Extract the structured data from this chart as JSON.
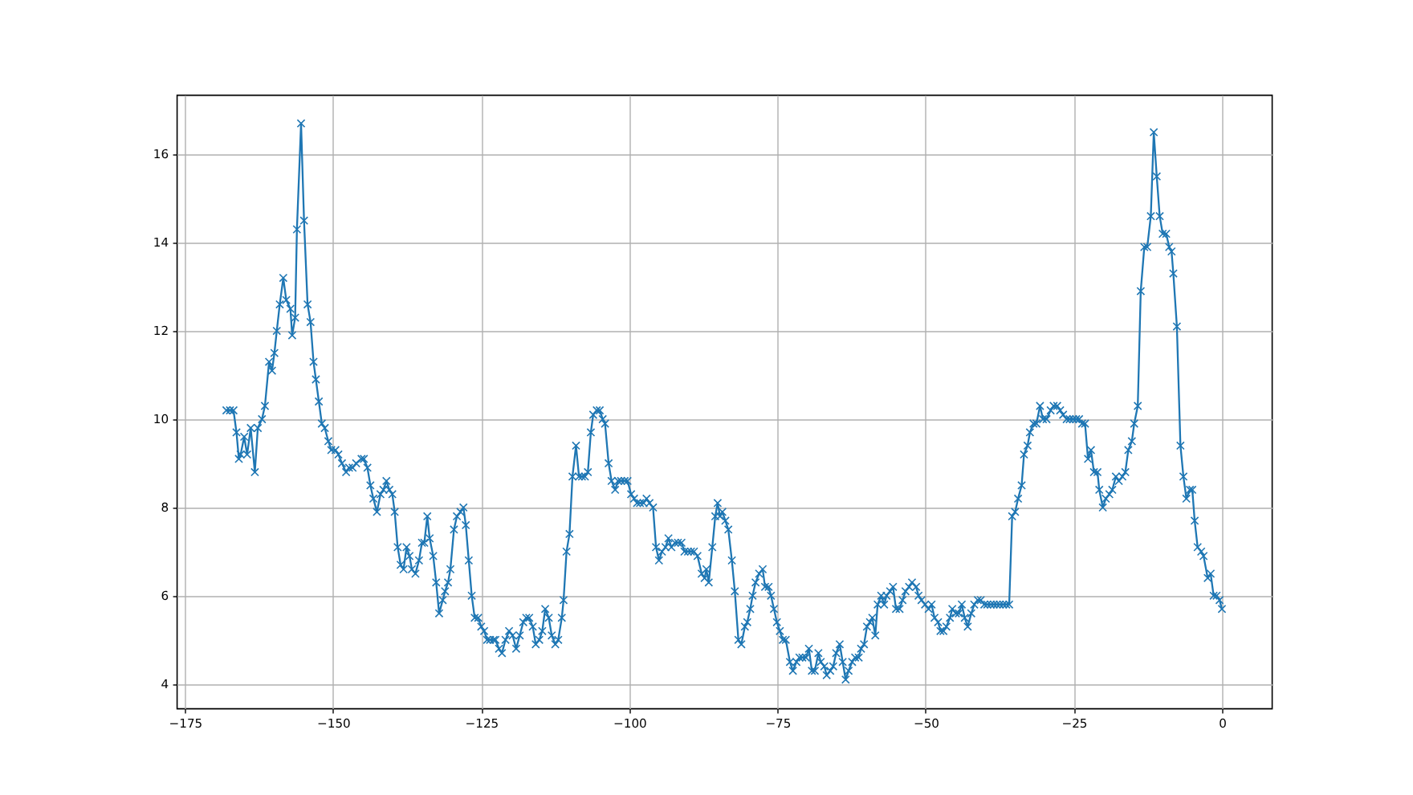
{
  "chart_data": {
    "type": "line",
    "marker": "cross",
    "line_style": "solid",
    "grid": true,
    "xlim": [
      -176.4,
      8.4
    ],
    "xticks": [
      -175,
      -150,
      -125,
      -100,
      -75,
      -50,
      -25,
      0
    ],
    "ylim": [
      3.45,
      17.35
    ],
    "yticks": [
      4,
      6,
      8,
      10,
      12,
      14,
      16
    ],
    "x": [
      -168,
      -167.4,
      -166.8,
      -166.3,
      -165.9,
      -165.6,
      -165,
      -164.5,
      -163.9,
      -163.2,
      -162.7,
      -162,
      -161.5,
      -160.8,
      -160.3,
      -159.9,
      -159.5,
      -159,
      -158.4,
      -157.9,
      -157.2,
      -156.9,
      -156.4,
      -156.1,
      -155.4,
      -154.9,
      -154.3,
      -153.8,
      -153.3,
      -152.9,
      -152.4,
      -151.9,
      -151.4,
      -150.8,
      -150.3,
      -149.6,
      -149.1,
      -148.5,
      -147.8,
      -147.3,
      -146.7,
      -146.1,
      -145.2,
      -144.8,
      -144.2,
      -143.7,
      -143.2,
      -142.6,
      -142,
      -141.5,
      -141,
      -140.5,
      -140,
      -139.6,
      -139.1,
      -138.6,
      -138.1,
      -137.6,
      -137.1,
      -136.7,
      -136.1,
      -135.5,
      -135,
      -134.6,
      -134.1,
      -133.7,
      -133.1,
      -132.6,
      -132.1,
      -131.5,
      -131.1,
      -130.6,
      -130.2,
      -129.6,
      -129.1,
      -128.5,
      -128,
      -127.6,
      -127.1,
      -126.6,
      -126.1,
      -125.5,
      -125,
      -124.5,
      -124,
      -123.5,
      -122.9,
      -122.6,
      -122,
      -121.5,
      -120.9,
      -120.3,
      -119.7,
      -119.1,
      -118.5,
      -117.9,
      -117.4,
      -116.9,
      -116.3,
      -115.8,
      -115.2,
      -114.7,
      -114.2,
      -113.6,
      -113.1,
      -112.5,
      -112,
      -111.4,
      -111.1,
      -110.6,
      -110.1,
      -109.6,
      -109,
      -108.5,
      -108,
      -107.5,
      -107,
      -106.5,
      -106.1,
      -105.5,
      -105,
      -104.5,
      -104.1,
      -103.5,
      -103,
      -102.4,
      -101.9,
      -101.4,
      -100.8,
      -100.3,
      -99.7,
      -99.2,
      -98.7,
      -98.2,
      -97.6,
      -97.1,
      -96.6,
      -96,
      -95.5,
      -95,
      -94.5,
      -93.9,
      -93.4,
      -92.9,
      -92.3,
      -91.8,
      -91.2,
      -90.7,
      -90.1,
      -89.6,
      -89.1,
      -88.5,
      -87.8,
      -87.3,
      -87,
      -86.6,
      -86,
      -85.5,
      -85.1,
      -84.7,
      -84.3,
      -83.8,
      -83.3,
      -82.7,
      -82.2,
      -81.6,
      -81.1,
      -80.5,
      -80.1,
      -79.6,
      -79.2,
      -78.7,
      -78.1,
      -77.5,
      -77.1,
      -76.5,
      -76.1,
      -75.6,
      -75.1,
      -74.6,
      -74.1,
      -73.6,
      -72.9,
      -72.4,
      -71.8,
      -71.3,
      -70.8,
      -70.2,
      -69.7,
      -69.2,
      -68.7,
      -68.1,
      -67.7,
      -67.1,
      -66.7,
      -66.1,
      -65.6,
      -65.1,
      -64.5,
      -64,
      -63.5,
      -63,
      -62.4,
      -61.9,
      -61.3,
      -60.9,
      -60.4,
      -59.9,
      -59.4,
      -59,
      -58.5,
      -58.1,
      -57.5,
      -57,
      -56.6,
      -56,
      -55.5,
      -55,
      -54.4,
      -53.9,
      -53.4,
      -52.8,
      -52.3,
      -51.6,
      -51.2,
      -50.7,
      -50.1,
      -49.5,
      -49,
      -48.5,
      -47.9,
      -47.5,
      -47,
      -46.5,
      -45.9,
      -45.5,
      -44.9,
      -44.4,
      -43.9,
      -43.4,
      -42.9,
      -42.3,
      -41.8,
      -41.2,
      -40.7,
      -40.1,
      -39.6,
      -39,
      -38.5,
      -38,
      -37.5,
      -36.9,
      -36.4,
      -35.9,
      -35.4,
      -34.9,
      -34.4,
      -33.8,
      -33.4,
      -32.8,
      -32.4,
      -31.8,
      -31.3,
      -30.7,
      -30.2,
      -29.6,
      -28.9,
      -28.4,
      -27.8,
      -27.3,
      -26.8,
      -26.2,
      -25.7,
      -25.1,
      -24.6,
      -24.1,
      -23.6,
      -23.1,
      -22.6,
      -22.1,
      -21.6,
      -21,
      -20.7,
      -20.1,
      -19.6,
      -19,
      -18.5,
      -17.9,
      -17.4,
      -16.8,
      -16.3,
      -15.8,
      -15.2,
      -14.8,
      -14.2,
      -13.7,
      -13.1,
      -12.6,
      -12,
      -11.5,
      -11,
      -10.5,
      -10,
      -9.4,
      -8.9,
      -8.5,
      -8.2,
      -7.6,
      -7,
      -6.5,
      -6,
      -5.4,
      -5,
      -4.6,
      -4.1,
      -3.5,
      -3.1,
      -2.4,
      -1.9,
      -1.4,
      -0.9,
      -0.4,
      0
    ],
    "series": [
      {
        "color": "#1f77b4",
        "values": [
          10.2,
          10.2,
          10.2,
          9.7,
          9.1,
          9.2,
          9.6,
          9.2,
          9.8,
          8.8,
          9.8,
          10,
          10.3,
          11.3,
          11.1,
          11.5,
          12,
          12.6,
          13.2,
          12.7,
          12.5,
          11.9,
          12.3,
          14.3,
          16.7,
          14.5,
          12.6,
          12.2,
          11.3,
          10.9,
          10.4,
          9.9,
          9.8,
          9.5,
          9.3,
          9.3,
          9.2,
          9,
          8.8,
          8.9,
          8.9,
          9,
          9.1,
          9.1,
          8.9,
          8.5,
          8.2,
          7.9,
          8.3,
          8.4,
          8.6,
          8.4,
          8.3,
          7.9,
          7.1,
          6.7,
          6.6,
          7.1,
          6.9,
          6.6,
          6.5,
          6.8,
          7.2,
          7.2,
          7.8,
          7.3,
          6.9,
          6.3,
          5.6,
          5.9,
          6.1,
          6.3,
          6.6,
          7.5,
          7.8,
          7.9,
          8,
          7.6,
          6.8,
          6,
          5.5,
          5.5,
          5.3,
          5.2,
          5,
          5,
          5,
          5,
          4.8,
          4.7,
          5,
          5.2,
          5.1,
          4.8,
          5.1,
          5.4,
          5.5,
          5.5,
          5.3,
          4.9,
          5,
          5.2,
          5.7,
          5.5,
          5.1,
          4.9,
          5,
          5.5,
          5.9,
          7,
          7.4,
          8.7,
          9.4,
          8.7,
          8.7,
          8.7,
          8.8,
          9.7,
          10.1,
          10.2,
          10.2,
          10,
          9.9,
          9,
          8.6,
          8.4,
          8.6,
          8.6,
          8.6,
          8.6,
          8.3,
          8.2,
          8.1,
          8.1,
          8.1,
          8.2,
          8.1,
          8,
          7.1,
          6.8,
          7,
          7.1,
          7.3,
          7.1,
          7.2,
          7.2,
          7.2,
          7,
          7,
          7,
          7,
          6.9,
          6.5,
          6.4,
          6.6,
          6.3,
          7.1,
          7.8,
          8.1,
          7.8,
          7.9,
          7.7,
          7.5,
          6.8,
          6.1,
          5,
          4.9,
          5.3,
          5.4,
          5.7,
          6,
          6.3,
          6.5,
          6.6,
          6.2,
          6.2,
          6,
          5.7,
          5.4,
          5.2,
          5,
          5,
          4.5,
          4.3,
          4.5,
          4.6,
          4.6,
          4.6,
          4.8,
          4.3,
          4.3,
          4.7,
          4.5,
          4.4,
          4.2,
          4.3,
          4.4,
          4.7,
          4.9,
          4.5,
          4.1,
          4.3,
          4.5,
          4.6,
          4.6,
          4.8,
          4.9,
          5.3,
          5.4,
          5.5,
          5.1,
          5.8,
          6,
          5.8,
          6,
          6.1,
          6.2,
          5.7,
          5.7,
          5.9,
          6.1,
          6.2,
          6.3,
          6.2,
          6,
          5.9,
          5.8,
          5.7,
          5.8,
          5.5,
          5.4,
          5.2,
          5.2,
          5.3,
          5.5,
          5.7,
          5.6,
          5.6,
          5.8,
          5.5,
          5.3,
          5.6,
          5.8,
          5.9,
          5.9,
          5.8,
          5.8,
          5.8,
          5.8,
          5.8,
          5.8,
          5.8,
          5.8,
          5.8,
          7.8,
          7.9,
          8.2,
          8.5,
          9.2,
          9.4,
          9.7,
          9.9,
          9.9,
          10.3,
          10,
          10,
          10.2,
          10.3,
          10.3,
          10.2,
          10.1,
          10,
          10,
          10,
          10,
          10,
          9.9,
          9.9,
          9.1,
          9.3,
          8.8,
          8.8,
          8.4,
          8,
          8.2,
          8.3,
          8.4,
          8.7,
          8.6,
          8.7,
          8.8,
          9.3,
          9.5,
          9.9,
          10.3,
          12.9,
          13.9,
          13.9,
          14.6,
          16.5,
          15.5,
          14.6,
          14.2,
          14.2,
          13.9,
          13.8,
          13.3,
          12.1,
          9.4,
          8.7,
          8.2,
          8.4,
          8.4,
          7.7,
          7.1,
          7,
          6.9,
          6.4,
          6.5,
          6,
          6,
          5.9,
          5.7
        ]
      }
    ]
  }
}
